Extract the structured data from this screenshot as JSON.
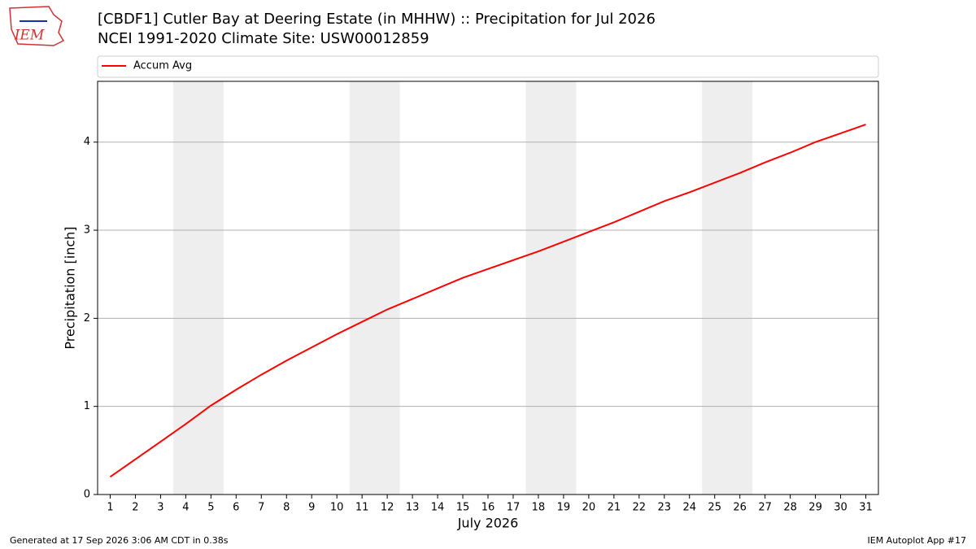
{
  "logo": "IEM",
  "footer": {
    "left": "Generated at 17 Sep 2026 3:06 AM CDT in 0.38s",
    "right": "IEM Autoplot App #17"
  },
  "chart_data": {
    "type": "line",
    "title": "[CBDF1] Cutler Bay at Deering Estate (in MHHW) :: Precipitation for Jul 2026",
    "subtitle": "NCEI 1991-2020 Climate Site: USW00012859",
    "xlabel": "July 2026",
    "ylabel": "Precipitation [inch]",
    "x": [
      1,
      2,
      3,
      4,
      5,
      6,
      7,
      8,
      9,
      10,
      11,
      12,
      13,
      14,
      15,
      16,
      17,
      18,
      19,
      20,
      21,
      22,
      23,
      24,
      25,
      26,
      27,
      28,
      29,
      30,
      31
    ],
    "series": [
      {
        "name": "Accum Avg",
        "color": "#ff0000",
        "values": [
          0.2,
          0.4,
          0.6,
          0.8,
          1.01,
          1.19,
          1.36,
          1.52,
          1.67,
          1.82,
          1.96,
          2.1,
          2.22,
          2.34,
          2.46,
          2.56,
          2.66,
          2.76,
          2.87,
          2.98,
          3.09,
          3.21,
          3.33,
          3.43,
          3.54,
          3.65,
          3.77,
          3.88,
          4.0,
          4.1,
          4.2
        ]
      }
    ],
    "shaded_spans": [
      [
        3.5,
        5.5
      ],
      [
        10.5,
        12.5
      ],
      [
        17.5,
        19.5
      ],
      [
        24.5,
        26.5
      ]
    ],
    "shade_color": "#eeeeee",
    "xlim": [
      0.5,
      31.5
    ],
    "ylim": [
      0,
      4.69
    ],
    "xticks": [
      1,
      2,
      3,
      4,
      5,
      6,
      7,
      8,
      9,
      10,
      11,
      12,
      13,
      14,
      15,
      16,
      17,
      18,
      19,
      20,
      21,
      22,
      23,
      24,
      25,
      26,
      27,
      28,
      29,
      30,
      31
    ],
    "yticks": [
      0,
      1,
      2,
      3,
      4
    ],
    "grid": true,
    "legend": "top"
  }
}
